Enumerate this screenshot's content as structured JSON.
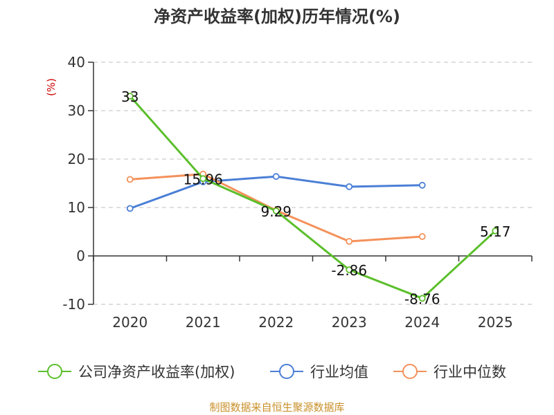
{
  "chart_data": {
    "type": "line",
    "title": "净资产收益率(加权)历年情况(%)",
    "ylabel": "(%)",
    "xlabel": "",
    "categories": [
      "2020",
      "2021",
      "2022",
      "2023",
      "2024",
      "2025"
    ],
    "ylim": [
      -10,
      40
    ],
    "yticks": [
      -10,
      0,
      10,
      20,
      30,
      40
    ],
    "grid": true,
    "legend_position": "bottom",
    "series": [
      {
        "name": "公司净资产收益率(加权)",
        "color": "#5bbf2b",
        "values": [
          33,
          15.96,
          9.29,
          -2.86,
          -8.76,
          5.17
        ],
        "labels": [
          "33",
          "15.96",
          "9.29",
          "-2.86",
          "-8.76",
          "5.17"
        ]
      },
      {
        "name": "行业均值",
        "color": "#4a7fd6",
        "values": [
          9.8,
          15.3,
          16.4,
          14.3,
          14.6,
          null
        ],
        "labels": []
      },
      {
        "name": "行业中位数",
        "color": "#f4915a",
        "values": [
          15.8,
          16.9,
          9.4,
          3.0,
          4.0,
          null
        ],
        "labels": []
      }
    ],
    "source": "制图数据来自恒生聚源数据库"
  }
}
